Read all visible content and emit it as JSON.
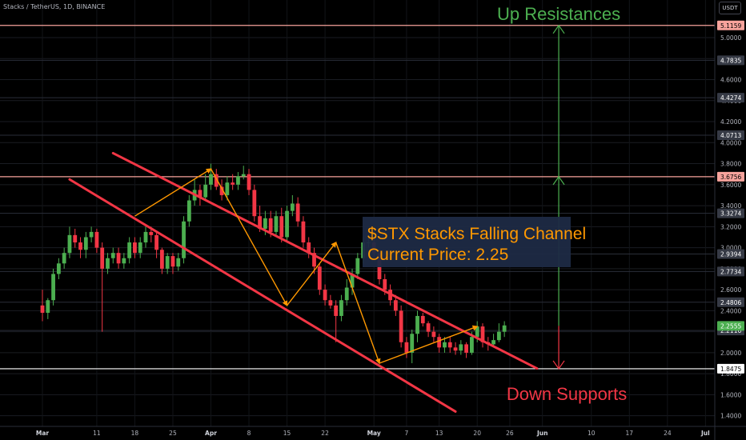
{
  "header": {
    "symbol": "Stacks / TetherUS, 1D, BINANCE",
    "currency": "USDT"
  },
  "colors": {
    "up": "#4caf50",
    "down": "#f23645",
    "channel": "#f23645",
    "wave": "#ff9800",
    "hline": "#f7a39c",
    "support": "#ffffff",
    "resistance_arrow": "#4caf50",
    "support_arrow": "#f23645",
    "info_bg": "#1e2a44",
    "info_text": "#ff9800",
    "price_tag_bg": "#363a45",
    "last_price_bg": "#4caf50"
  },
  "chart_data": {
    "type": "candlestick",
    "y_axis": {
      "ticks": [
        5.0,
        4.8,
        4.6,
        4.4,
        4.2,
        4.0,
        3.8,
        3.6,
        3.4,
        3.2,
        3.0,
        2.8,
        2.6,
        2.4,
        2.2,
        2.0,
        1.8,
        1.6,
        1.4
      ],
      "tick_labels": [
        "5.0000",
        "4.8000",
        "4.6000",
        "4.4000",
        "4.2000",
        "4.0000",
        "3.8000",
        "3.6000",
        "3.4000",
        "3.2000",
        "3.0000",
        "2.8000",
        "2.6000",
        "2.4000",
        "2.2000",
        "2.0000",
        "1.8000",
        "1.6000",
        "1.4000"
      ]
    },
    "x_axis": {
      "labels": [
        "Mar",
        "11",
        "18",
        "25",
        "Apr",
        "8",
        "15",
        "22",
        "May",
        "7",
        "13",
        "20",
        "26",
        "Jun",
        "10",
        "17",
        "24",
        "Jul"
      ],
      "label_days": [
        0,
        10,
        17,
        24,
        31,
        38,
        45,
        52,
        61,
        67,
        73,
        80,
        86,
        92,
        101,
        108,
        115,
        122
      ]
    },
    "candles_open": [
      2.45,
      2.38,
      2.5,
      2.75,
      2.85,
      2.95,
      3.12,
      3.05,
      2.98,
      3.1,
      3.15,
      3.0,
      2.8,
      2.9,
      2.95,
      2.85,
      2.9,
      3.05,
      2.95,
      3.05,
      3.15,
      3.12,
      2.98,
      2.8,
      2.92,
      2.82,
      2.9,
      3.25,
      3.45,
      3.55,
      3.48,
      3.6,
      3.7,
      3.58,
      3.5,
      3.62,
      3.6,
      3.68,
      3.7,
      3.55,
      3.3,
      3.18,
      3.28,
      3.15,
      3.3,
      3.1,
      3.35,
      3.42,
      3.25,
      3.05,
      2.95,
      2.82,
      2.6,
      2.5,
      2.45,
      2.35,
      2.5,
      2.62,
      2.75,
      2.9,
      3.05,
      3.05,
      2.95,
      2.7,
      2.6,
      2.5,
      2.4,
      2.1,
      2.0,
      2.18,
      2.35,
      2.28,
      2.2,
      2.15,
      2.05,
      2.1,
      2.05,
      2.02,
      2.08,
      2.0,
      2.15,
      2.25,
      2.1,
      2.08,
      2.12,
      2.2
    ],
    "candles_close": [
      2.38,
      2.5,
      2.75,
      2.85,
      2.95,
      3.12,
      3.05,
      2.98,
      3.1,
      3.15,
      3.0,
      2.8,
      2.9,
      2.95,
      2.85,
      2.9,
      3.05,
      2.95,
      3.05,
      3.15,
      3.12,
      2.98,
      2.8,
      2.92,
      2.82,
      2.9,
      3.25,
      3.45,
      3.55,
      3.48,
      3.6,
      3.7,
      3.58,
      3.5,
      3.62,
      3.6,
      3.68,
      3.7,
      3.55,
      3.3,
      3.18,
      3.28,
      3.15,
      3.3,
      3.1,
      3.35,
      3.42,
      3.25,
      3.05,
      2.95,
      2.82,
      2.6,
      2.5,
      2.45,
      2.35,
      2.5,
      2.62,
      2.75,
      2.9,
      3.05,
      3.05,
      2.95,
      2.7,
      2.6,
      2.5,
      2.4,
      2.1,
      2.0,
      2.18,
      2.35,
      2.28,
      2.2,
      2.15,
      2.05,
      2.1,
      2.05,
      2.02,
      2.08,
      2.0,
      2.15,
      2.25,
      2.1,
      2.08,
      2.12,
      2.2,
      2.26
    ],
    "candles_high": [
      2.6,
      2.52,
      2.8,
      2.9,
      3.0,
      3.2,
      3.18,
      3.1,
      3.15,
      3.2,
      3.18,
      3.05,
      2.95,
      3.0,
      3.0,
      2.95,
      3.1,
      3.1,
      3.1,
      3.2,
      3.2,
      3.15,
      3.0,
      2.95,
      2.95,
      2.95,
      3.3,
      3.5,
      3.65,
      3.6,
      3.7,
      3.8,
      3.75,
      3.65,
      3.68,
      3.7,
      3.72,
      3.78,
      3.75,
      3.6,
      3.4,
      3.35,
      3.35,
      3.35,
      3.38,
      3.4,
      3.5,
      3.48,
      3.3,
      3.1,
      3.0,
      2.85,
      2.65,
      2.55,
      2.5,
      2.55,
      2.7,
      2.8,
      2.95,
      3.1,
      3.12,
      3.08,
      2.98,
      2.75,
      2.65,
      2.55,
      2.45,
      2.15,
      2.22,
      2.4,
      2.38,
      2.3,
      2.25,
      2.18,
      2.15,
      2.15,
      2.1,
      2.12,
      2.1,
      2.2,
      2.3,
      2.28,
      2.15,
      2.18,
      2.28,
      2.3
    ],
    "candles_low": [
      2.3,
      2.32,
      2.45,
      2.7,
      2.8,
      2.9,
      3.0,
      2.9,
      2.9,
      3.05,
      2.95,
      2.2,
      2.75,
      2.85,
      2.8,
      2.8,
      2.85,
      2.9,
      2.9,
      3.0,
      3.05,
      2.9,
      2.75,
      2.75,
      2.75,
      2.78,
      2.85,
      3.2,
      3.4,
      3.4,
      3.45,
      3.55,
      3.55,
      3.45,
      3.45,
      3.55,
      3.55,
      3.65,
      3.5,
      3.25,
      3.15,
      3.12,
      3.1,
      3.1,
      3.05,
      3.05,
      3.3,
      3.2,
      3.0,
      2.9,
      2.75,
      2.55,
      2.45,
      2.42,
      2.1,
      2.3,
      2.45,
      2.55,
      2.7,
      2.85,
      3.0,
      2.9,
      2.65,
      2.55,
      2.45,
      2.35,
      2.05,
      1.95,
      1.9,
      2.1,
      2.25,
      2.15,
      2.1,
      2.0,
      2.0,
      2.0,
      1.98,
      1.98,
      1.95,
      1.98,
      2.1,
      2.05,
      2.02,
      2.05,
      2.1,
      2.15
    ],
    "horizontal_levels": [
      {
        "value": 5.1159,
        "label": "5.1159",
        "role": "resistance"
      },
      {
        "value": 3.6756,
        "label": "3.6756",
        "role": "resistance"
      },
      {
        "value": 1.8475,
        "label": "1.8475",
        "role": "support"
      }
    ],
    "faint_levels": [
      {
        "value": 4.7835,
        "label": "4.7835"
      },
      {
        "value": 4.4274,
        "label": "4.4274"
      },
      {
        "value": 4.0713,
        "label": "4.0713"
      },
      {
        "value": 3.3274,
        "label": "3.3274"
      },
      {
        "value": 2.9394,
        "label": "2.9394"
      },
      {
        "value": 2.7734,
        "label": "2.7734"
      },
      {
        "value": 2.4806,
        "label": "2.4806"
      },
      {
        "value": 2.2116,
        "label": "2.2116"
      }
    ],
    "last_price": {
      "value": 2.2555,
      "label": "2.2555"
    },
    "channel_upper": {
      "day_start": 13,
      "value_start": 3.9,
      "day_end": 91,
      "value_end": 1.85
    },
    "channel_lower": {
      "day_start": 5,
      "value_start": 3.65,
      "day_end": 76,
      "value_end": 1.44
    },
    "wave_points": [
      {
        "day": 17,
        "value": 3.3
      },
      {
        "day": 31,
        "value": 3.75
      },
      {
        "day": 45,
        "value": 2.45
      },
      {
        "day": 54,
        "value": 3.05
      },
      {
        "day": 62,
        "value": 1.9
      },
      {
        "day": 80,
        "value": 2.25
      }
    ],
    "info_box": {
      "title": "$STX Stacks Falling Channel",
      "subtitle": "Current Price: 2.25"
    },
    "up_label": "Up Resistances",
    "down_label": "Down Supports",
    "arrow_day": 95
  }
}
